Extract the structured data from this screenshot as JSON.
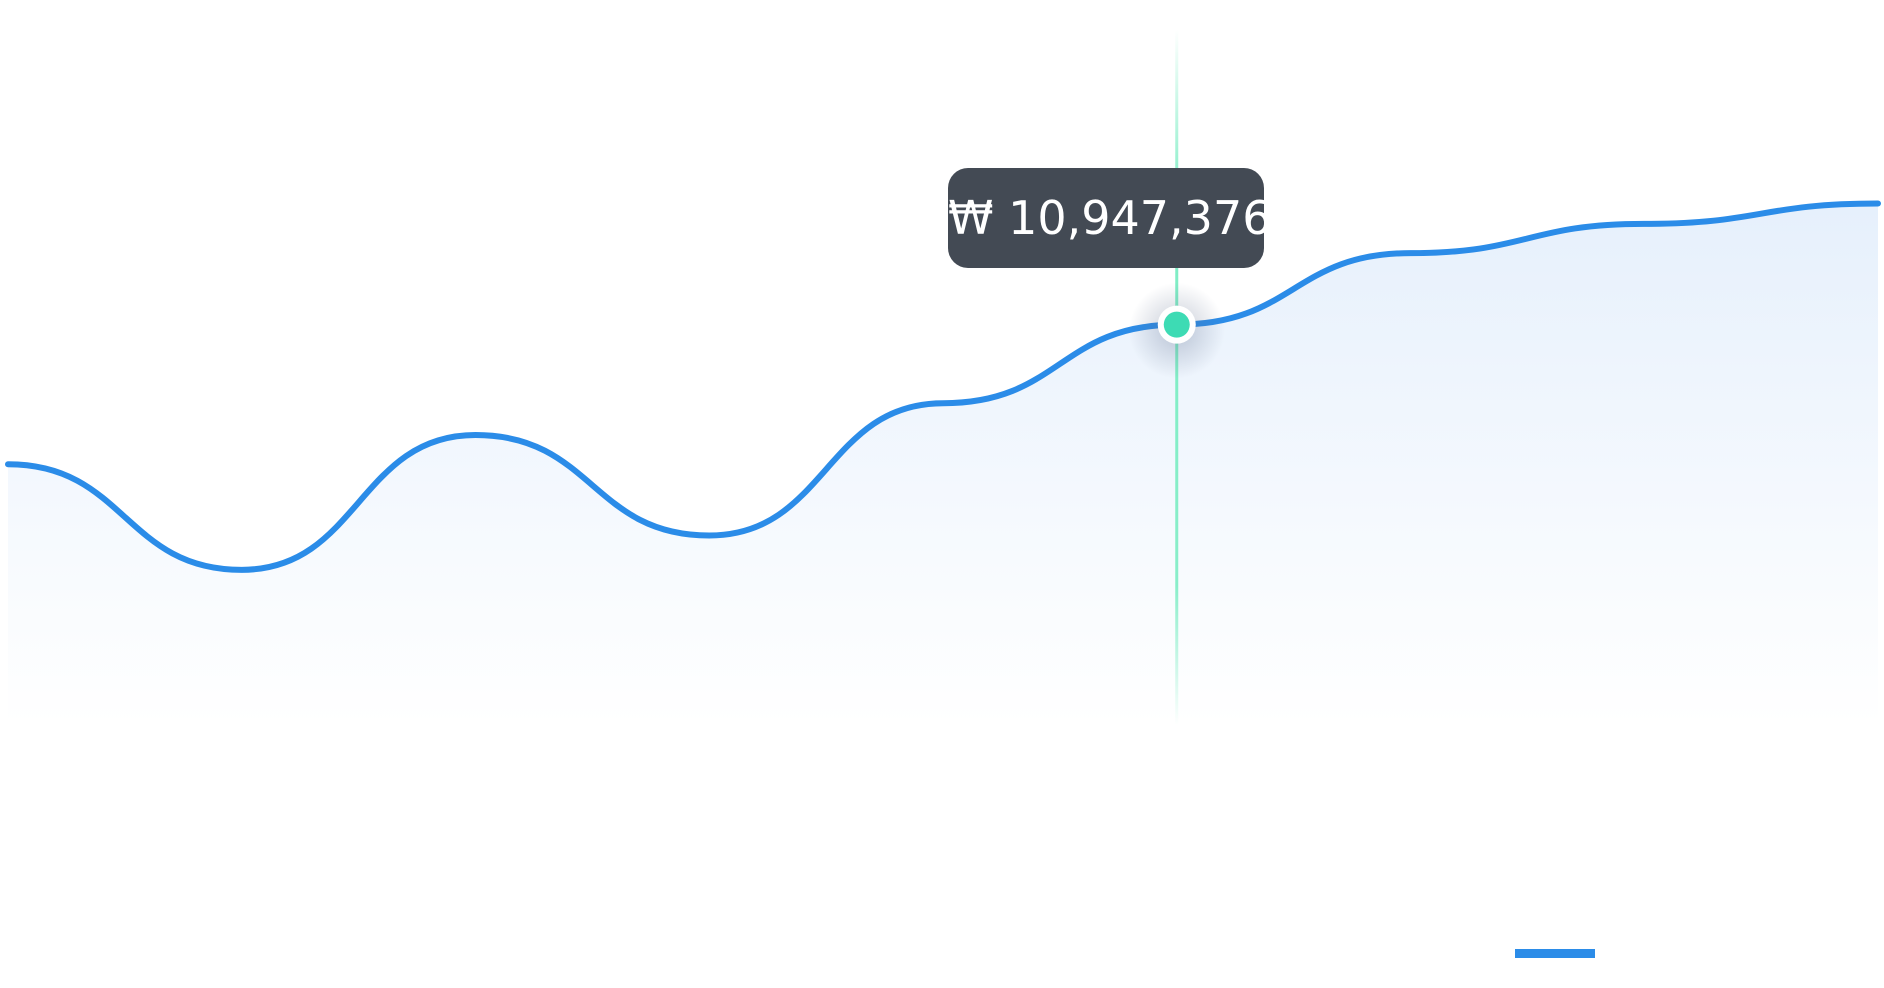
{
  "chart_data": {
    "type": "area",
    "title": "",
    "xlabel": "",
    "ylabel": "",
    "x": [
      0,
      1,
      2,
      3,
      4,
      5,
      6,
      7,
      8
    ],
    "series": [
      {
        "values": [
          9850000,
          9020000,
          10080000,
          9290000,
          10330000,
          10947376,
          11510000,
          11740000,
          11900000
        ],
        "color": "#2b8ce8"
      }
    ],
    "ylim": [
      7800000,
      13500000
    ],
    "grid": false,
    "area_fill": "#e8f2fd",
    "tooltip": {
      "x": 5,
      "value": 10947376,
      "label": "₩ 10,947,376"
    },
    "crosshair_color": "#7dedc4",
    "point_color": "#3ddbb4",
    "legend_color": "#2b8ce8"
  }
}
